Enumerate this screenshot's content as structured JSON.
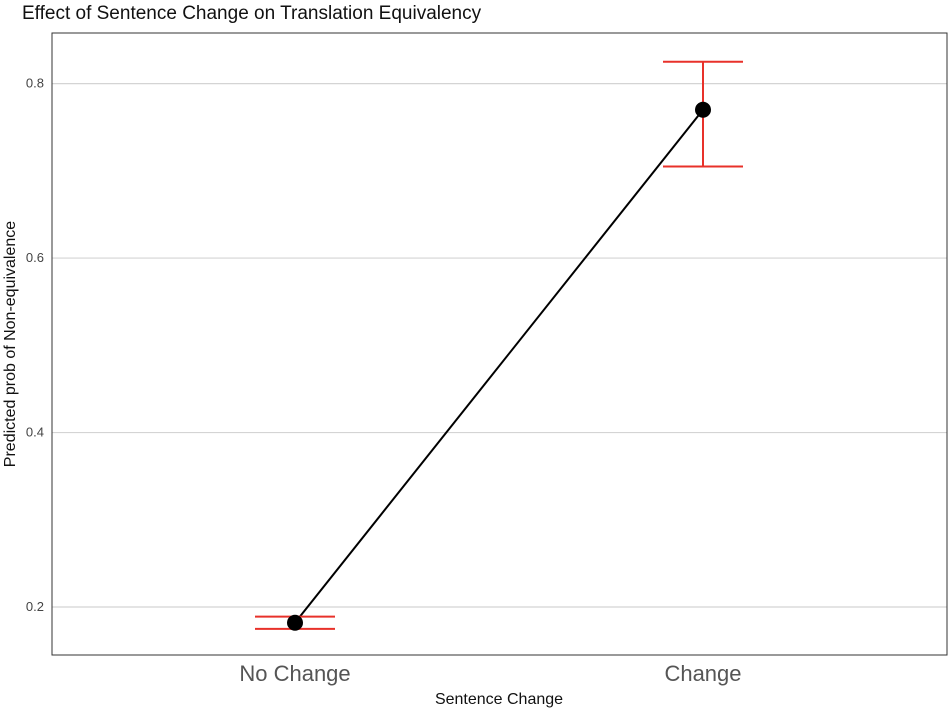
{
  "chart_data": {
    "type": "line",
    "title": "Effect of Sentence Change on Translation Equivalency",
    "xlabel": "Sentence Change",
    "ylabel": "Predicted prob of Non-equivalence",
    "categories": [
      "No Change",
      "Change"
    ],
    "series": [
      {
        "values": [
          0.182,
          0.77
        ],
        "ci_lower": [
          0.175,
          0.705
        ],
        "ci_upper": [
          0.189,
          0.825
        ]
      }
    ],
    "yticks": [
      0.2,
      0.4,
      0.6,
      0.8
    ],
    "ytick_labels": [
      "0.2",
      "0.4",
      "0.6",
      "0.8"
    ],
    "ylim": [
      0.145,
      0.858
    ],
    "grid": "horizontal major",
    "legend": "none",
    "colors": {
      "point": "#000000",
      "line": "#000000",
      "errorbar": "#e8312a",
      "grid": "#d4d4d4",
      "panel_border": "#333333"
    }
  }
}
